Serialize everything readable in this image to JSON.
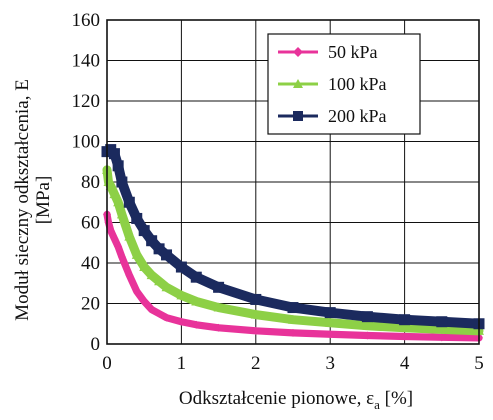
{
  "chart_data": {
    "type": "scatter",
    "title": "",
    "xlabel": {
      "main": "Odkształcenie pionowe, ε",
      "sub": "a",
      "unit": " [%]"
    },
    "ylabel": {
      "line1": "Moduł sieczny odkształcenia, E",
      "line2": "[MPa]"
    },
    "xlim": [
      0,
      5
    ],
    "ylim": [
      0,
      160
    ],
    "xticks": [
      "0",
      "1",
      "2",
      "3",
      "4",
      "5"
    ],
    "yticks": [
      "0",
      "20",
      "40",
      "60",
      "80",
      "100",
      "120",
      "140",
      "160"
    ],
    "grid": true,
    "legend_position": "top-right",
    "series": [
      {
        "name": "50 kPa",
        "color": "#e8339a",
        "marker": "diamond",
        "x": [
          0.0,
          0.02,
          0.05,
          0.1,
          0.15,
          0.2,
          0.3,
          0.4,
          0.5,
          0.6,
          0.7,
          0.8,
          1.0,
          1.2,
          1.5,
          2.0,
          2.5,
          3.0,
          3.5,
          4.0,
          4.5,
          5.0
        ],
        "y": [
          64,
          60,
          56,
          52,
          48,
          43,
          34,
          26,
          21,
          17,
          15,
          13,
          11,
          9.5,
          8,
          6.5,
          5.5,
          4.8,
          4.2,
          3.7,
          3.3,
          3.0
        ]
      },
      {
        "name": "100 kPa",
        "color": "#8dd046",
        "marker": "triangle",
        "x": [
          0.0,
          0.02,
          0.05,
          0.1,
          0.15,
          0.2,
          0.3,
          0.4,
          0.5,
          0.6,
          0.7,
          0.8,
          1.0,
          1.2,
          1.5,
          2.0,
          2.5,
          3.0,
          3.5,
          4.0,
          4.5,
          5.0
        ],
        "y": [
          86,
          80,
          78,
          74,
          70,
          64,
          53,
          44,
          38,
          34,
          31,
          28,
          24,
          21,
          18,
          14.5,
          12,
          10.5,
          9,
          8,
          7.2,
          6.5
        ]
      },
      {
        "name": "200 kPa",
        "color": "#1b2a5e",
        "marker": "square",
        "x": [
          0.0,
          0.05,
          0.1,
          0.15,
          0.2,
          0.3,
          0.4,
          0.5,
          0.6,
          0.7,
          0.8,
          1.0,
          1.2,
          1.5,
          2.0,
          2.5,
          3.0,
          3.5,
          4.0,
          4.5,
          5.0
        ],
        "y": [
          95,
          96,
          94,
          88,
          80,
          70,
          62,
          56,
          51,
          47,
          44,
          38,
          33,
          28,
          22,
          18,
          15.5,
          13.5,
          12,
          11,
          10
        ]
      }
    ]
  }
}
